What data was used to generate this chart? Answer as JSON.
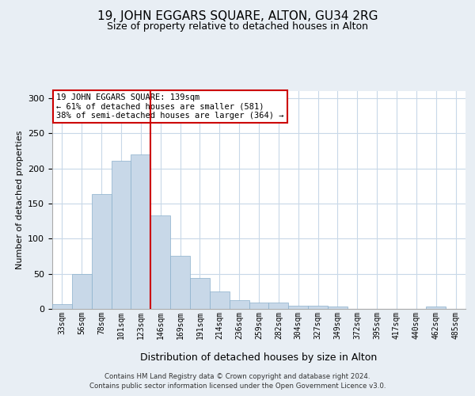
{
  "title": "19, JOHN EGGARS SQUARE, ALTON, GU34 2RG",
  "subtitle": "Size of property relative to detached houses in Alton",
  "xlabel": "Distribution of detached houses by size in Alton",
  "ylabel": "Number of detached properties",
  "bar_color": "#c8d8e8",
  "bar_edge_color": "#8ab0cc",
  "bar_width": 1.0,
  "categories": [
    "33sqm",
    "56sqm",
    "78sqm",
    "101sqm",
    "123sqm",
    "146sqm",
    "169sqm",
    "191sqm",
    "214sqm",
    "236sqm",
    "259sqm",
    "282sqm",
    "304sqm",
    "327sqm",
    "349sqm",
    "372sqm",
    "395sqm",
    "417sqm",
    "440sqm",
    "462sqm",
    "485sqm"
  ],
  "values": [
    7,
    50,
    163,
    211,
    220,
    133,
    75,
    44,
    25,
    12,
    9,
    9,
    5,
    5,
    3,
    0,
    0,
    0,
    0,
    3,
    0
  ],
  "ylim": [
    0,
    310
  ],
  "yticks": [
    0,
    50,
    100,
    150,
    200,
    250,
    300
  ],
  "vline_x": 4.5,
  "vline_color": "#cc0000",
  "annotation_text": "19 JOHN EGGARS SQUARE: 139sqm\n← 61% of detached houses are smaller (581)\n38% of semi-detached houses are larger (364) →",
  "annotation_box_color": "white",
  "annotation_box_edge": "#cc0000",
  "footer": "Contains HM Land Registry data © Crown copyright and database right 2024.\nContains public sector information licensed under the Open Government Licence v3.0.",
  "bg_color": "#e8eef4",
  "plot_bg_color": "white",
  "grid_color": "#c8d8e8"
}
